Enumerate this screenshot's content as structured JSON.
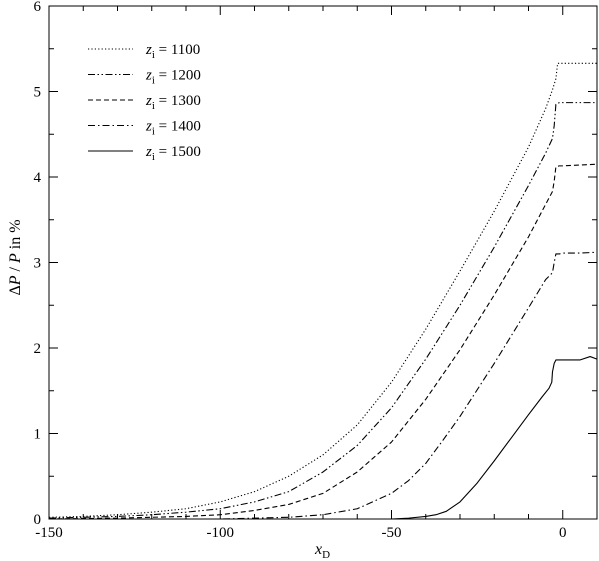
{
  "chart_data": {
    "type": "line",
    "title": "",
    "xlabel": {
      "main": "x",
      "sub": "D"
    },
    "ylabel": {
      "parts": [
        {
          "text": "Δ",
          "italic": false
        },
        {
          "text": "P",
          "italic": true
        },
        {
          "text": " / ",
          "italic": false
        },
        {
          "text": "P",
          "italic": true
        },
        {
          "text": "  in %",
          "italic": false
        }
      ]
    },
    "xlim": [
      -150,
      10
    ],
    "ylim": [
      0,
      6
    ],
    "xticks": [
      -150,
      -100,
      -50,
      0
    ],
    "yticks": [
      0,
      1,
      2,
      3,
      4,
      5,
      6
    ],
    "x_minor_step": 10,
    "y_minor_step": 0.5,
    "grid": false,
    "legend_position": "top-left",
    "series": [
      {
        "name": "z_i = 1100",
        "legend": {
          "var": "z",
          "sub": "i",
          "rest": " = 1100"
        },
        "dash": "dotted",
        "points": [
          [
            -150,
            0.02
          ],
          [
            -140,
            0.03
          ],
          [
            -130,
            0.05
          ],
          [
            -120,
            0.08
          ],
          [
            -110,
            0.12
          ],
          [
            -100,
            0.2
          ],
          [
            -90,
            0.32
          ],
          [
            -80,
            0.5
          ],
          [
            -70,
            0.75
          ],
          [
            -60,
            1.1
          ],
          [
            -50,
            1.6
          ],
          [
            -40,
            2.22
          ],
          [
            -30,
            2.9
          ],
          [
            -20,
            3.6
          ],
          [
            -10,
            4.35
          ],
          [
            -5,
            4.8
          ],
          [
            -3,
            5.02
          ],
          [
            -2,
            5.15
          ],
          [
            -1.5,
            5.33
          ],
          [
            0,
            5.33
          ],
          [
            5,
            5.33
          ],
          [
            10,
            5.33
          ]
        ]
      },
      {
        "name": "z_i = 1200",
        "legend": {
          "var": "z",
          "sub": "i",
          "rest": " = 1200"
        },
        "dash": "dash-dot-dot",
        "points": [
          [
            -150,
            0.01
          ],
          [
            -140,
            0.02
          ],
          [
            -130,
            0.03
          ],
          [
            -120,
            0.05
          ],
          [
            -110,
            0.08
          ],
          [
            -100,
            0.12
          ],
          [
            -90,
            0.2
          ],
          [
            -80,
            0.32
          ],
          [
            -70,
            0.55
          ],
          [
            -60,
            0.86
          ],
          [
            -50,
            1.3
          ],
          [
            -40,
            1.87
          ],
          [
            -30,
            2.5
          ],
          [
            -20,
            3.18
          ],
          [
            -10,
            3.9
          ],
          [
            -5,
            4.28
          ],
          [
            -3,
            4.45
          ],
          [
            -2.5,
            4.6
          ],
          [
            -2,
            4.85
          ],
          [
            -1,
            4.87
          ],
          [
            0,
            4.87
          ],
          [
            5,
            4.87
          ],
          [
            10,
            4.87
          ]
        ]
      },
      {
        "name": "z_i = 1300",
        "legend": {
          "var": "z",
          "sub": "i",
          "rest": " = 1300"
        },
        "dash": "dashed",
        "points": [
          [
            -150,
            0.0
          ],
          [
            -130,
            0.01
          ],
          [
            -120,
            0.02
          ],
          [
            -110,
            0.03
          ],
          [
            -100,
            0.05
          ],
          [
            -90,
            0.1
          ],
          [
            -80,
            0.17
          ],
          [
            -70,
            0.3
          ],
          [
            -60,
            0.55
          ],
          [
            -50,
            0.9
          ],
          [
            -40,
            1.4
          ],
          [
            -30,
            1.98
          ],
          [
            -20,
            2.62
          ],
          [
            -10,
            3.3
          ],
          [
            -5,
            3.68
          ],
          [
            -3,
            3.83
          ],
          [
            -2.5,
            3.95
          ],
          [
            -2,
            4.12
          ],
          [
            -1,
            4.13
          ],
          [
            0,
            4.13
          ],
          [
            5,
            4.14
          ],
          [
            10,
            4.15
          ]
        ]
      },
      {
        "name": "z_i = 1400",
        "legend": {
          "var": "z",
          "sub": "i",
          "rest": " = 1400"
        },
        "dash": "dash-dot",
        "points": [
          [
            -150,
            0.0
          ],
          [
            -100,
            0.0
          ],
          [
            -90,
            0.01
          ],
          [
            -80,
            0.02
          ],
          [
            -70,
            0.05
          ],
          [
            -60,
            0.12
          ],
          [
            -50,
            0.3
          ],
          [
            -45,
            0.45
          ],
          [
            -40,
            0.65
          ],
          [
            -35,
            0.92
          ],
          [
            -30,
            1.2
          ],
          [
            -20,
            1.82
          ],
          [
            -10,
            2.47
          ],
          [
            -5,
            2.8
          ],
          [
            -3,
            2.88
          ],
          [
            -2.5,
            3.0
          ],
          [
            -2,
            3.1
          ],
          [
            -1,
            3.1
          ],
          [
            0,
            3.11
          ],
          [
            5,
            3.11
          ],
          [
            10,
            3.12
          ]
        ]
      },
      {
        "name": "z_i = 1500",
        "legend": {
          "var": "z",
          "sub": "i",
          "rest": " = 1500"
        },
        "dash": "solid",
        "points": [
          [
            -150,
            0.0
          ],
          [
            -70,
            0.0
          ],
          [
            -50,
            0.0
          ],
          [
            -45,
            0.01
          ],
          [
            -40,
            0.03
          ],
          [
            -37,
            0.05
          ],
          [
            -34,
            0.09
          ],
          [
            -30,
            0.2
          ],
          [
            -25,
            0.42
          ],
          [
            -20,
            0.68
          ],
          [
            -15,
            0.95
          ],
          [
            -10,
            1.22
          ],
          [
            -6,
            1.43
          ],
          [
            -4,
            1.53
          ],
          [
            -3.2,
            1.6
          ],
          [
            -3,
            1.72
          ],
          [
            -2.5,
            1.82
          ],
          [
            -2,
            1.86
          ],
          [
            0,
            1.86
          ],
          [
            5,
            1.86
          ],
          [
            8,
            1.9
          ],
          [
            10,
            1.87
          ]
        ]
      }
    ]
  }
}
